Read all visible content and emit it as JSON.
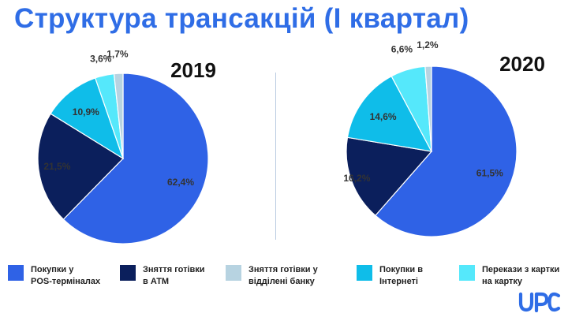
{
  "title": "Структура трансакцій (І квартал)",
  "colors": {
    "title": "#2f6de6",
    "divider": "#b9cbe0",
    "label": "#333333",
    "logo": "#2f6de6"
  },
  "legend": [
    {
      "label": "Покупки у\nPOS-терміналах",
      "color": "#2f62e6"
    },
    {
      "label": "Зняття готівки\nв АТМ",
      "color": "#0b1f5c"
    },
    {
      "label": "Зняття готівки у\nвідділені банку",
      "color": "#b7d3e1"
    },
    {
      "label": "Покупки в\nІнтернеті",
      "color": "#0fbde9"
    },
    {
      "label": "Перекази з картки\nна картку",
      "color": "#55e8fb"
    }
  ],
  "logo": {
    "icon": "upc-logo",
    "text": "UPC"
  },
  "chart_data": [
    {
      "type": "pie",
      "title": "2019",
      "categories": [
        "Покупки у POS-терміналах",
        "Зняття готівки в АТМ",
        "Покупки в Інтернеті",
        "Перекази з картки на картку",
        "Зняття готівки у відділені банку"
      ],
      "values": [
        62.4,
        21.5,
        10.9,
        3.6,
        1.7
      ],
      "labels": [
        "62,4%",
        "21,5%",
        "10,9%",
        "3,6%",
        "1,7%"
      ],
      "colors": [
        "#2f62e6",
        "#0b1f5c",
        "#0fbde9",
        "#55e8fb",
        "#b7d3e1"
      ],
      "start_angle_deg": 0,
      "direction": "clockwise",
      "legend": "bottom"
    },
    {
      "type": "pie",
      "title": "2020",
      "categories": [
        "Покупки у POS-терміналах",
        "Зняття готівки в АТМ",
        "Покупки в Інтернеті",
        "Перекази з картки на картку",
        "Зняття готівки у відділені банку"
      ],
      "values": [
        61.5,
        16.2,
        14.6,
        6.6,
        1.2
      ],
      "labels": [
        "61,5%",
        "16,2%",
        "14,6%",
        "6,6%",
        "1,2%"
      ],
      "colors": [
        "#2f62e6",
        "#0b1f5c",
        "#0fbde9",
        "#55e8fb",
        "#b7d3e1"
      ],
      "start_angle_deg": 0,
      "direction": "clockwise",
      "legend": "bottom"
    }
  ]
}
